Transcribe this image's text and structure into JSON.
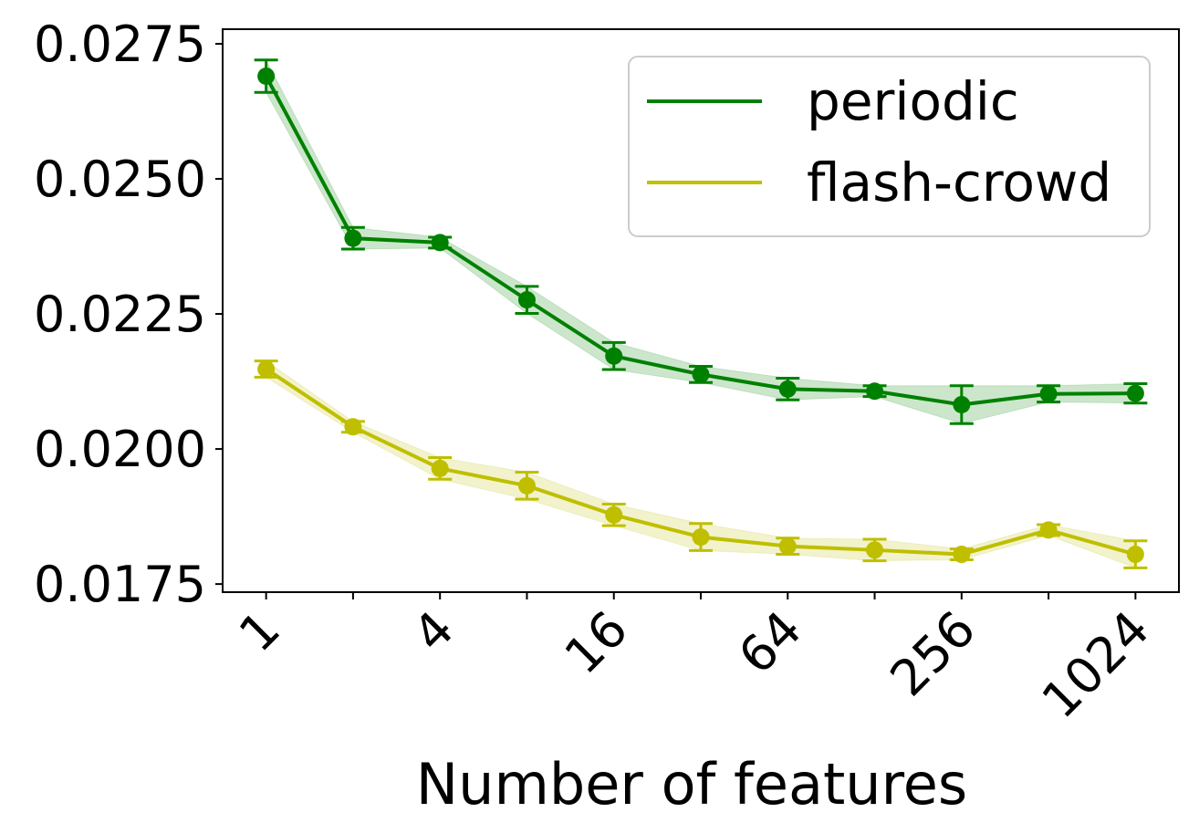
{
  "chart_data": {
    "type": "line",
    "xlabel": "Number of features",
    "ylabel": "",
    "x_scale": "log2",
    "x": [
      1,
      2,
      4,
      8,
      16,
      32,
      64,
      128,
      256,
      512,
      1024
    ],
    "x_tick_labels": [
      {
        "value": 1,
        "label": "1"
      },
      {
        "value": 4,
        "label": "4"
      },
      {
        "value": 16,
        "label": "16"
      },
      {
        "value": 64,
        "label": "64"
      },
      {
        "value": 256,
        "label": "256"
      },
      {
        "value": 1024,
        "label": "1024"
      }
    ],
    "x_minor_ticks": [
      2,
      8,
      32,
      128,
      512
    ],
    "y_ticks": [
      0.0175,
      0.02,
      0.0225,
      0.025,
      0.0275
    ],
    "y_tick_labels": [
      "0.0175",
      "0.0200",
      "0.0225",
      "0.0250",
      "0.0275"
    ],
    "ylim": [
      0.01735,
      0.02777
    ],
    "grid": false,
    "legend_position": "top-right",
    "series": [
      {
        "name": "periodic",
        "color": "#008000",
        "values": [
          0.0269,
          0.0239,
          0.02382,
          0.02276,
          0.02172,
          0.02138,
          0.02111,
          0.02107,
          0.02082,
          0.02102,
          0.02103
        ],
        "errors": [
          0.0003,
          0.0002,
          0.0001,
          0.00025,
          0.00025,
          0.00015,
          0.0002,
          0.0001,
          0.00035,
          0.00015,
          0.00018
        ]
      },
      {
        "name": "flash-crowd",
        "color": "#bfbf00",
        "values": [
          0.02148,
          0.02041,
          0.01964,
          0.01932,
          0.01878,
          0.01837,
          0.0182,
          0.01813,
          0.01805,
          0.0185,
          0.01805
        ],
        "errors": [
          0.00015,
          0.0001,
          0.0002,
          0.00025,
          0.0002,
          0.00025,
          0.00015,
          0.0002,
          0.0001,
          0.0001,
          0.00025
        ]
      }
    ]
  }
}
